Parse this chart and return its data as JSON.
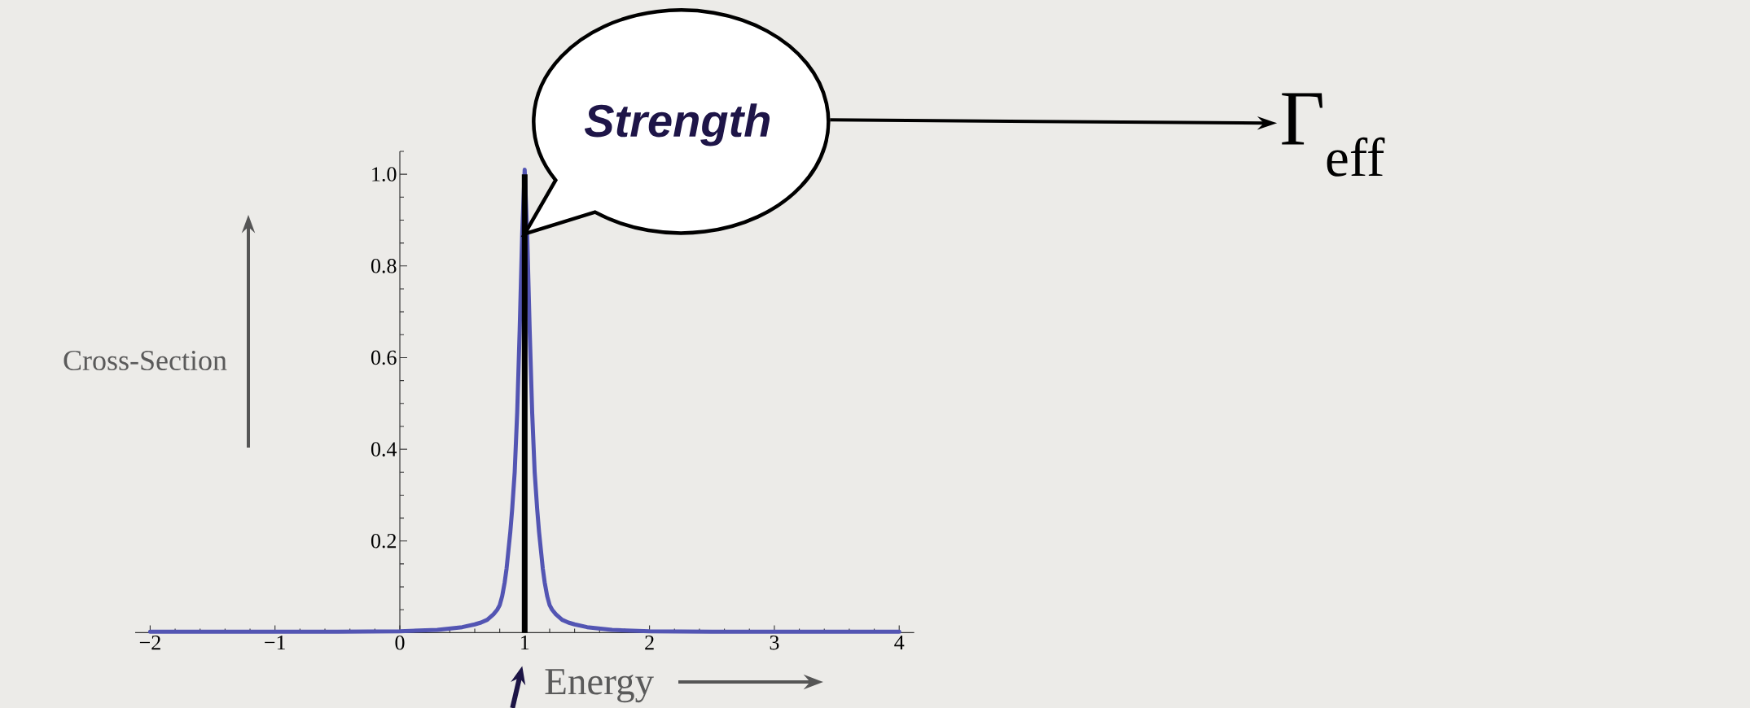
{
  "chart_data": {
    "type": "line",
    "xlabel": "Energy",
    "ylabel": "Cross-Section",
    "annotations": [
      {
        "text": "Strength",
        "x": 1,
        "y": 0.87
      },
      "Γ$_{eff}$"
    ],
    "xlim": [
      -2.12,
      4.12
    ],
    "ylim": [
      0,
      1.05
    ],
    "xticks": [
      {
        "value": -2,
        "label": "−2"
      },
      {
        "value": -1,
        "label": "−1"
      },
      0,
      1,
      2,
      3,
      4
    ],
    "yticks": [
      0.2,
      0.4,
      0.6,
      0.8,
      {
        "value": 1,
        "label": "1.0"
      }
    ],
    "series": [
      {
        "color": "#5355b3",
        "x": [
          -2,
          -1,
          -0.5,
          0,
          0.3,
          0.5,
          0.6,
          0.65,
          0.7,
          0.75,
          0.78,
          0.8,
          0.82,
          0.84,
          0.855,
          0.87,
          0.885,
          0.9,
          0.92,
          0.94,
          0.96,
          0.98,
          1,
          1.02,
          1.04,
          1.06,
          1.08,
          1.1,
          1.115,
          1.13,
          1.145,
          1.16,
          1.18,
          1.2,
          1.22,
          1.25,
          1.3,
          1.35,
          1.4,
          1.5,
          1.7,
          2,
          2.5,
          3,
          4
        ],
        "values": [
          0.002,
          0.002,
          0.002,
          0.003,
          0.006,
          0.012,
          0.018,
          0.022,
          0.028,
          0.04,
          0.05,
          0.06,
          0.08,
          0.11,
          0.14,
          0.18,
          0.22,
          0.27,
          0.35,
          0.48,
          0.66,
          0.87,
          1.01,
          0.87,
          0.66,
          0.48,
          0.35,
          0.27,
          0.22,
          0.18,
          0.14,
          0.11,
          0.08,
          0.06,
          0.05,
          0.04,
          0.028,
          0.022,
          0.018,
          0.012,
          0.006,
          0.003,
          0.002,
          0.002,
          0.002
        ]
      },
      {
        "type": "bar",
        "color": "#000000",
        "x": [
          1
        ],
        "values": [
          1.0
        ]
      }
    ]
  }
}
